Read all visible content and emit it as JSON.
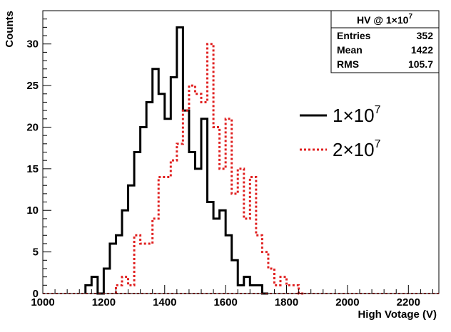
{
  "chart_data": {
    "type": "histogram",
    "xlabel": "High Votage (V)",
    "ylabel": "Counts",
    "xlim": [
      1000,
      2300
    ],
    "ylim": [
      0,
      34
    ],
    "bin_width": 20,
    "x_ticks": [
      {
        "value": 1000,
        "label": "1000"
      },
      {
        "value": 1200,
        "label": "1200"
      },
      {
        "value": 1400,
        "label": "1400"
      },
      {
        "value": 1600,
        "label": "1600"
      },
      {
        "value": 1800,
        "label": "1800"
      },
      {
        "value": 2000,
        "label": "2000"
      },
      {
        "value": 2200,
        "label": "2200"
      }
    ],
    "y_ticks": [
      {
        "value": 0,
        "label": "0"
      },
      {
        "value": 5,
        "label": "5"
      },
      {
        "value": 10,
        "label": "10"
      },
      {
        "value": 15,
        "label": "15"
      },
      {
        "value": 20,
        "label": "20"
      },
      {
        "value": 25,
        "label": "25"
      },
      {
        "value": 30,
        "label": "30"
      }
    ],
    "series": [
      {
        "name": "1×10^7",
        "color": "#000000",
        "style": "solid",
        "bins": [
          {
            "x": 1140,
            "y": 1
          },
          {
            "x": 1160,
            "y": 2
          },
          {
            "x": 1180,
            "y": 0
          },
          {
            "x": 1200,
            "y": 3
          },
          {
            "x": 1220,
            "y": 6
          },
          {
            "x": 1240,
            "y": 7
          },
          {
            "x": 1260,
            "y": 10
          },
          {
            "x": 1280,
            "y": 13
          },
          {
            "x": 1300,
            "y": 17
          },
          {
            "x": 1320,
            "y": 20
          },
          {
            "x": 1340,
            "y": 23
          },
          {
            "x": 1360,
            "y": 27
          },
          {
            "x": 1380,
            "y": 24
          },
          {
            "x": 1400,
            "y": 21
          },
          {
            "x": 1420,
            "y": 26
          },
          {
            "x": 1440,
            "y": 32
          },
          {
            "x": 1460,
            "y": 22
          },
          {
            "x": 1480,
            "y": 17
          },
          {
            "x": 1500,
            "y": 15
          },
          {
            "x": 1520,
            "y": 21
          },
          {
            "x": 1540,
            "y": 11
          },
          {
            "x": 1560,
            "y": 9
          },
          {
            "x": 1580,
            "y": 10
          },
          {
            "x": 1600,
            "y": 7
          },
          {
            "x": 1620,
            "y": 4
          },
          {
            "x": 1640,
            "y": 1
          },
          {
            "x": 1660,
            "y": 2
          },
          {
            "x": 1680,
            "y": 1
          },
          {
            "x": 1700,
            "y": 1
          },
          {
            "x": 1720,
            "y": 0
          }
        ]
      },
      {
        "name": "2×10^7",
        "color": "#e02020",
        "style": "dotted",
        "bins": [
          {
            "x": 1240,
            "y": 1
          },
          {
            "x": 1260,
            "y": 2
          },
          {
            "x": 1280,
            "y": 1
          },
          {
            "x": 1300,
            "y": 7
          },
          {
            "x": 1320,
            "y": 6
          },
          {
            "x": 1340,
            "y": 6
          },
          {
            "x": 1360,
            "y": 9
          },
          {
            "x": 1380,
            "y": 14
          },
          {
            "x": 1400,
            "y": 14
          },
          {
            "x": 1420,
            "y": 16
          },
          {
            "x": 1440,
            "y": 18
          },
          {
            "x": 1460,
            "y": 22
          },
          {
            "x": 1480,
            "y": 25
          },
          {
            "x": 1500,
            "y": 24
          },
          {
            "x": 1520,
            "y": 23
          },
          {
            "x": 1540,
            "y": 30
          },
          {
            "x": 1560,
            "y": 20
          },
          {
            "x": 1580,
            "y": 15
          },
          {
            "x": 1600,
            "y": 21
          },
          {
            "x": 1620,
            "y": 12
          },
          {
            "x": 1640,
            "y": 15
          },
          {
            "x": 1660,
            "y": 9
          },
          {
            "x": 1680,
            "y": 14
          },
          {
            "x": 1700,
            "y": 7
          },
          {
            "x": 1720,
            "y": 5
          },
          {
            "x": 1740,
            "y": 3
          },
          {
            "x": 1760,
            "y": 1
          },
          {
            "x": 1780,
            "y": 2
          },
          {
            "x": 1800,
            "y": 1
          },
          {
            "x": 1820,
            "y": 1
          },
          {
            "x": 1840,
            "y": 0
          }
        ]
      }
    ],
    "stats_box": {
      "title_prefix": "HV @ 1",
      "title_times": "×",
      "title_base": "10",
      "title_exp": "7",
      "rows": [
        {
          "label": "Entries",
          "value": "352"
        },
        {
          "label": "Mean",
          "value": "1422"
        },
        {
          "label": "RMS",
          "value": "105.7"
        }
      ]
    },
    "legend": {
      "placement": "right-middle",
      "entries": [
        {
          "mantissa": "1",
          "times": "×",
          "base": "10",
          "exp": "7",
          "color": "#000000",
          "style": "solid"
        },
        {
          "mantissa": "2",
          "times": "×",
          "base": "10",
          "exp": "7",
          "color": "#e02020",
          "style": "dotted"
        }
      ]
    }
  }
}
